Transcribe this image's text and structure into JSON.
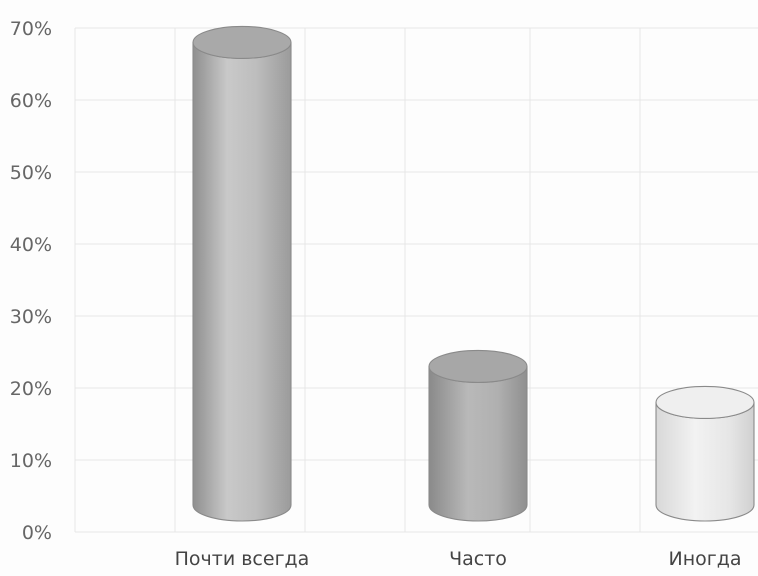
{
  "chart_data": {
    "type": "bar",
    "style": "3d-cylinder",
    "categories": [
      "Почти всегда",
      "Часто",
      "Иногда"
    ],
    "values": [
      68,
      23,
      18
    ],
    "ylim": [
      0,
      70
    ],
    "yticks": [
      "0%",
      "10%",
      "20%",
      "30%",
      "40%",
      "50%",
      "60%",
      "70%"
    ],
    "grid": true,
    "legend": "none",
    "colors": {
      "bar_dark": "#8f8f8f",
      "bar_mid": "#c7c7c7",
      "bar_light": "#ececec",
      "last_bar_light": "#f7f7f7"
    }
  }
}
